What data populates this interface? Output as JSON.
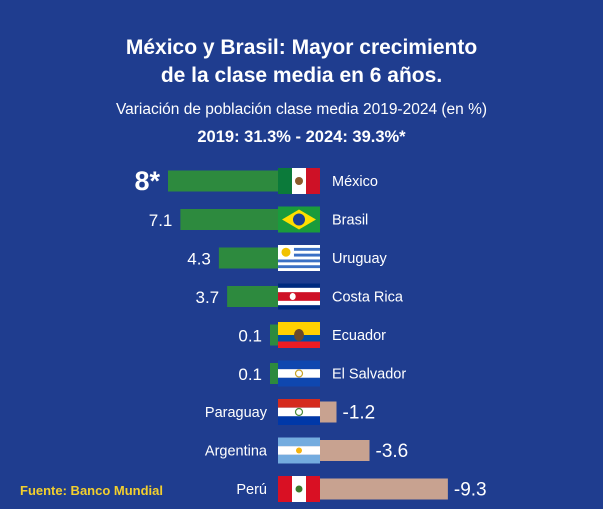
{
  "title_line1": "México y Brasil: Mayor crecimiento",
  "title_line2": "de la clase media en 6 años.",
  "subtitle": "Variación de población clase media 2019-2024 (en %)",
  "highlight": "2019: 31.3% - 2024: 39.3%*",
  "source": "Fuente: Banco Mundial",
  "colors": {
    "background": "#1f3d8f",
    "positive": "#2d8a3e",
    "negative": "#c8a290"
  },
  "chart_data": {
    "type": "bar",
    "orientation": "horizontal",
    "categories": [
      "México",
      "Brasil",
      "Uruguay",
      "Costa Rica",
      "Ecuador",
      "El Salvador",
      "Paraguay",
      "Argentina",
      "Perú"
    ],
    "values": [
      8,
      7.1,
      4.3,
      3.7,
      0.1,
      0.1,
      -1.2,
      -3.6,
      -9.3
    ],
    "labels": [
      "8*",
      "7.1",
      "4.3",
      "3.7",
      "0.1",
      "0.1",
      "-1.2",
      "-3.6",
      "-9.3"
    ],
    "flags": [
      "mexico-flag",
      "brazil-flag",
      "uruguay-flag",
      "costa-rica-flag",
      "ecuador-flag",
      "el-salvador-flag",
      "paraguay-flag",
      "argentina-flag",
      "peru-flag"
    ],
    "title": "Variación de población clase media 2019-2024 (en %)",
    "grid": false
  }
}
